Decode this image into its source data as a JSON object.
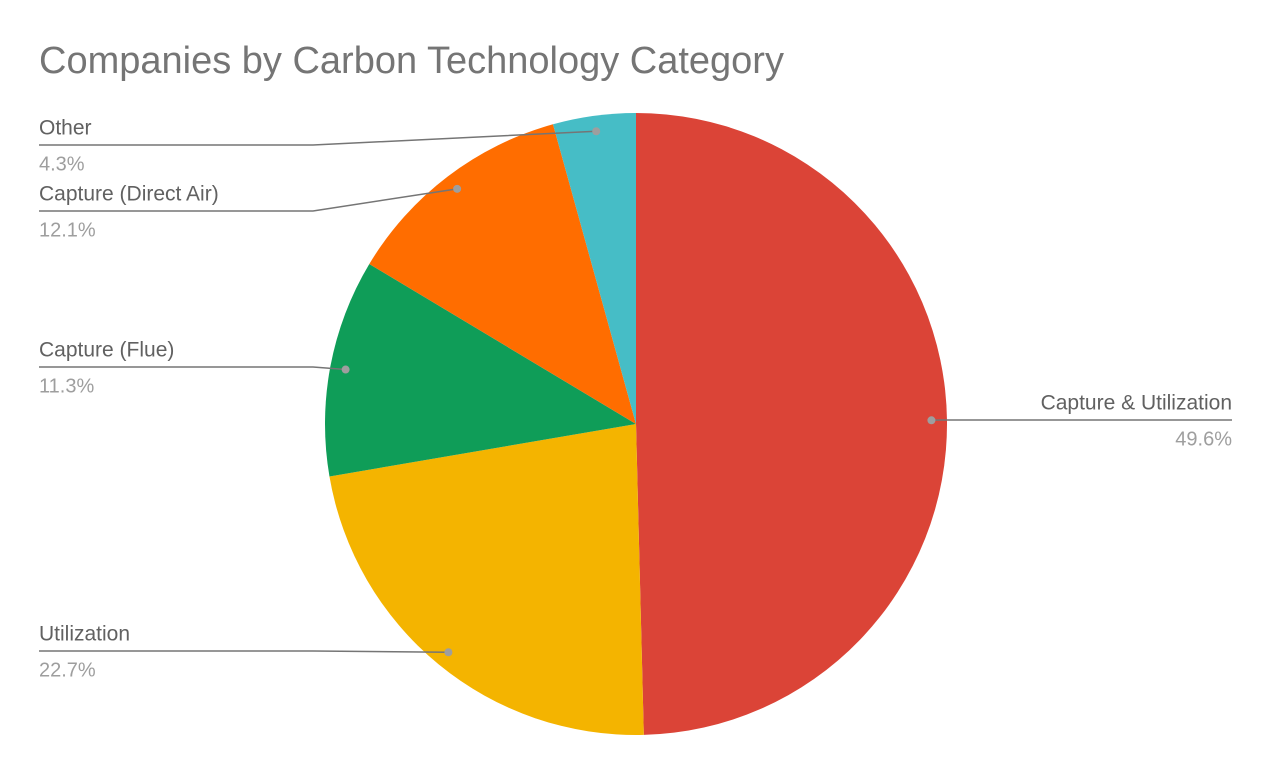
{
  "chart_data": {
    "type": "pie",
    "title": "Companies by Carbon Technology Category",
    "categories": [
      "Capture & Utilization",
      "Utilization",
      "Capture (Flue)",
      "Capture (Direct Air)",
      "Other"
    ],
    "values": [
      49.6,
      22.7,
      11.3,
      12.1,
      4.3
    ],
    "value_labels": [
      "49.6%",
      "22.7%",
      "11.3%",
      "12.1%",
      "4.3%"
    ],
    "colors": [
      "#db4437",
      "#f4b400",
      "#0f9d58",
      "#ff6d00",
      "#46bdc6"
    ]
  }
}
